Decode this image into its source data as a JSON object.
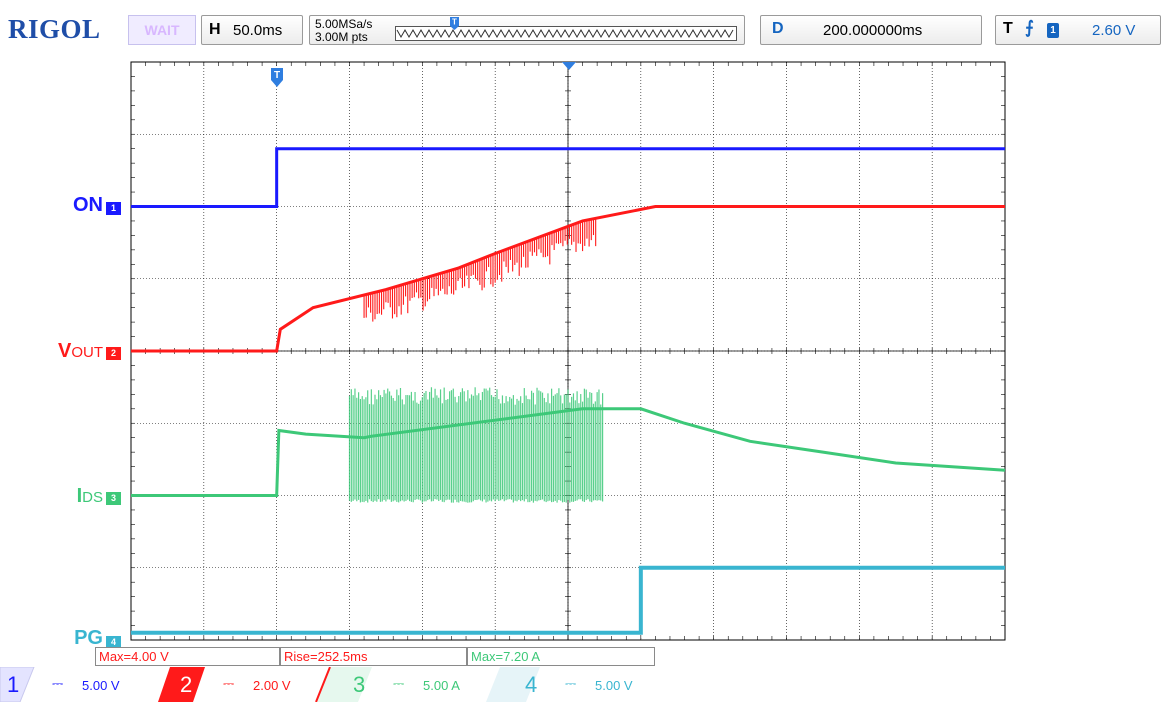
{
  "toolbar": {
    "brand": "RIGOL",
    "run_status": "WAIT",
    "timebase_label": "H",
    "timebase_value": "50.0ms",
    "sample_rate": "5.00MSa/s",
    "memory_depth": "3.00M pts",
    "trigger_marker_icon": "trigger-t-icon",
    "delay_label": "D",
    "delay_value": "200.000000ms",
    "trigger_label": "T",
    "trigger_edge_icon": "rising-edge-icon",
    "trigger_source": "1",
    "trigger_level": "2.60 V"
  },
  "channels": [
    {
      "label_main": "ON",
      "label_sub": "",
      "marker": "1",
      "color": "#1a1aff"
    },
    {
      "label_main": "V",
      "label_sub": "OUT",
      "marker": "2",
      "color": "#ff1a1a"
    },
    {
      "label_main": "I",
      "label_sub": "DS",
      "marker": "3",
      "color": "#3dc878"
    },
    {
      "label_main": "PG",
      "label_sub": "",
      "marker": "4",
      "color": "#39b5d0"
    }
  ],
  "measurements": [
    {
      "text": "Max=4.00 V",
      "color": "#ff1a1a"
    },
    {
      "text": "Rise=252.5ms",
      "color": "#ff1a1a"
    },
    {
      "text": "Max=7.20 A",
      "color": "#3dc878"
    }
  ],
  "bottom_channels": [
    {
      "number": "1",
      "coupling": "⎓",
      "scale": "5.00 V",
      "color": "#1a1aff",
      "active": false
    },
    {
      "number": "2",
      "coupling": "⎓",
      "scale": "2.00 V",
      "color": "#ff1a1a",
      "active": true
    },
    {
      "number": "3",
      "coupling": "⎓",
      "scale": "5.00 A",
      "color": "#3dc878",
      "active": false
    },
    {
      "number": "4",
      "coupling": "⎓",
      "scale": "5.00 V",
      "color": "#39b5d0",
      "active": false
    }
  ],
  "waveform_data": {
    "time_per_div": "50.0ms",
    "divisions_x": 12,
    "divisions_y": 8,
    "trigger_time_div": 2,
    "on": {
      "low_div": 6.0,
      "high_div": 6.8,
      "edge_div": 2.0
    },
    "vout": {
      "points_div": [
        [
          0,
          4.0
        ],
        [
          2.0,
          4.0
        ],
        [
          2.05,
          4.3
        ],
        [
          2.5,
          4.6
        ],
        [
          3.5,
          4.85
        ],
        [
          4.5,
          5.15
        ],
        [
          5.0,
          5.35
        ],
        [
          6.2,
          5.8
        ],
        [
          7.2,
          6.0
        ],
        [
          8,
          6.0
        ],
        [
          12,
          6.0
        ]
      ],
      "ripple_start": 3.2,
      "ripple_end": 6.4
    },
    "ids": {
      "points_div": [
        [
          0,
          2.0
        ],
        [
          2.0,
          2.0
        ],
        [
          2.03,
          2.9
        ],
        [
          2.4,
          2.85
        ],
        [
          3.2,
          2.8
        ],
        [
          3.3,
          2.82
        ],
        [
          6.2,
          3.2
        ],
        [
          7.0,
          3.2
        ],
        [
          7.6,
          3.0
        ],
        [
          8.5,
          2.75
        ],
        [
          9.5,
          2.6
        ],
        [
          10.5,
          2.45
        ],
        [
          12,
          2.35
        ]
      ],
      "burst_start": 3.0,
      "burst_end": 6.5,
      "burst_low": 1.9,
      "burst_high": 3.5
    },
    "pg": {
      "low_div": 0.1,
      "high_div": 1.0,
      "edge_div": 7.0
    }
  }
}
